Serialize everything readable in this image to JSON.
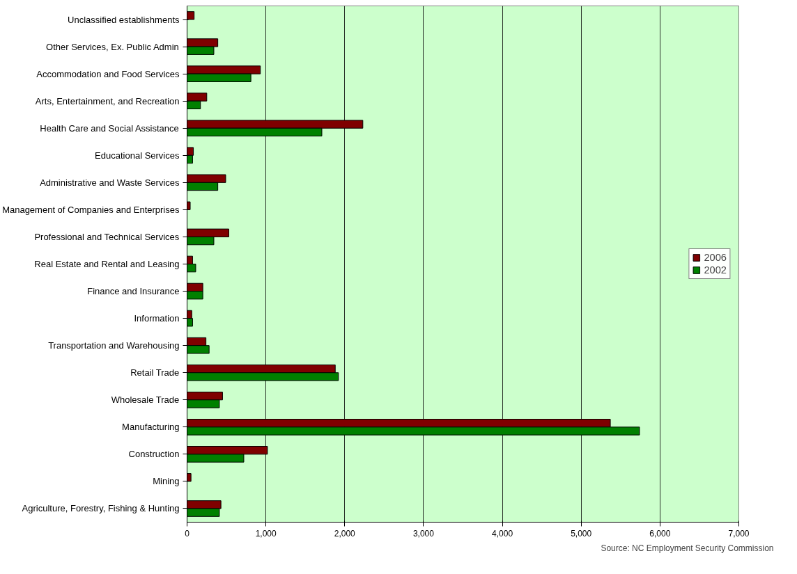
{
  "chart_data": {
    "type": "bar",
    "orientation": "horizontal",
    "categories": [
      "Unclassified establishments",
      "Other Services, Ex. Public Admin",
      "Accommodation and Food Services",
      "Arts, Entertainment, and Recreation",
      "Health Care and Social Assistance",
      "Educational Services",
      "Administrative and Waste Services",
      "Management of Companies and Enterprises",
      "Professional and Technical Services",
      "Real Estate and Rental and Leasing",
      "Finance and Insurance",
      "Information",
      "Transportation and Warehousing",
      "Retail Trade",
      "Wholesale Trade",
      "Manufacturing",
      "Construction",
      "Mining",
      "Agriculture, Forestry, Fishing & Hunting"
    ],
    "series": [
      {
        "name": "2006",
        "color": "#7f0000",
        "values": [
          90,
          390,
          930,
          250,
          2230,
          80,
          490,
          40,
          530,
          70,
          200,
          60,
          240,
          1880,
          450,
          5370,
          1020,
          50,
          430
        ]
      },
      {
        "name": "2002",
        "color": "#008000",
        "values": [
          null,
          340,
          810,
          170,
          1710,
          70,
          390,
          null,
          340,
          110,
          200,
          70,
          280,
          1920,
          410,
          5740,
          720,
          null,
          410
        ]
      }
    ],
    "xlim": [
      0,
      7000
    ],
    "xticks": [
      {
        "value": 0,
        "label": "0"
      },
      {
        "value": 1000,
        "label": "1,000"
      },
      {
        "value": 2000,
        "label": "2,000"
      },
      {
        "value": 3000,
        "label": "3,000"
      },
      {
        "value": 4000,
        "label": "4,000"
      },
      {
        "value": 5000,
        "label": "5,000"
      },
      {
        "value": 6000,
        "label": "6,000"
      },
      {
        "value": 7000,
        "label": "7,000"
      }
    ],
    "grid": "x",
    "legend": "right",
    "annotations": [
      "Source: NC Employment Security Commission"
    ]
  }
}
